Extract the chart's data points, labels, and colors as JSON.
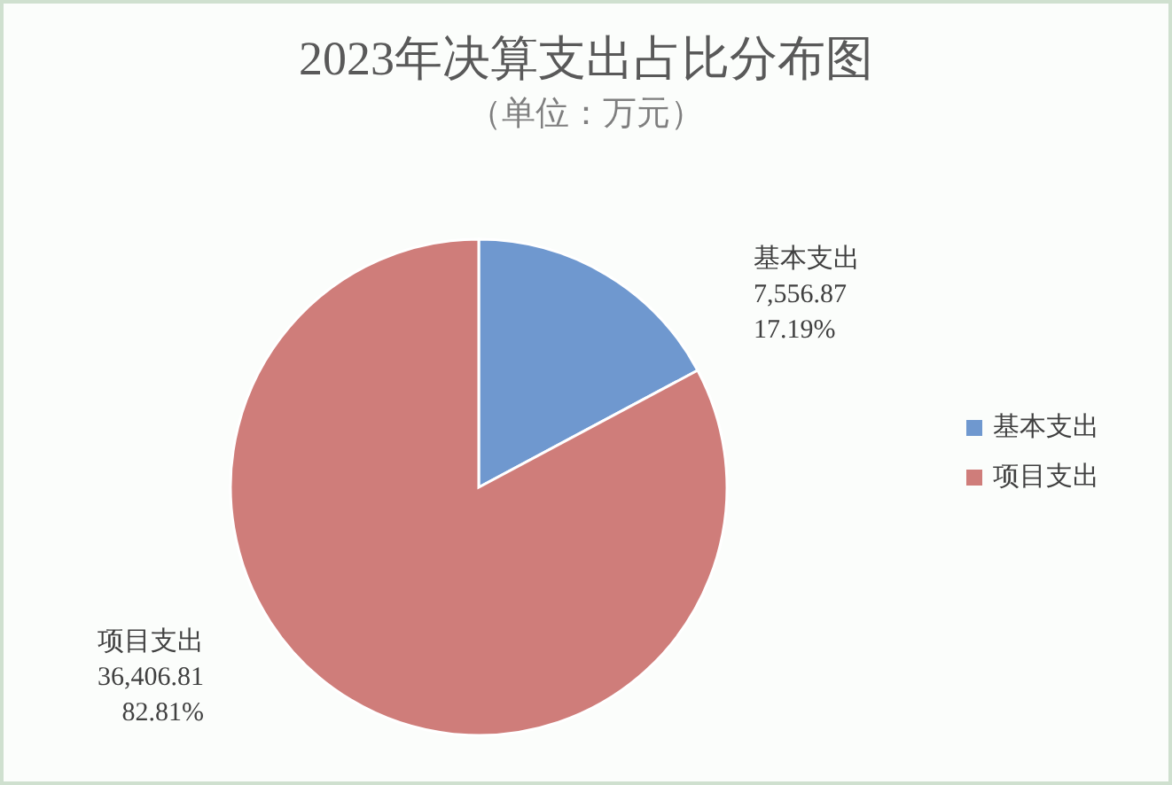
{
  "chart_data": {
    "type": "pie",
    "title": "2023年决算支出占比分布图",
    "subtitle": "（单位：万元）",
    "categories": [
      "基本支出",
      "项目支出"
    ],
    "values": [
      7556.87,
      36406.81
    ],
    "colors": [
      "#6f98cf",
      "#cf7d7a"
    ],
    "value_labels": [
      "7,556.87\n17.19%",
      "36,406.81\n82.81%"
    ],
    "legend": "right"
  }
}
